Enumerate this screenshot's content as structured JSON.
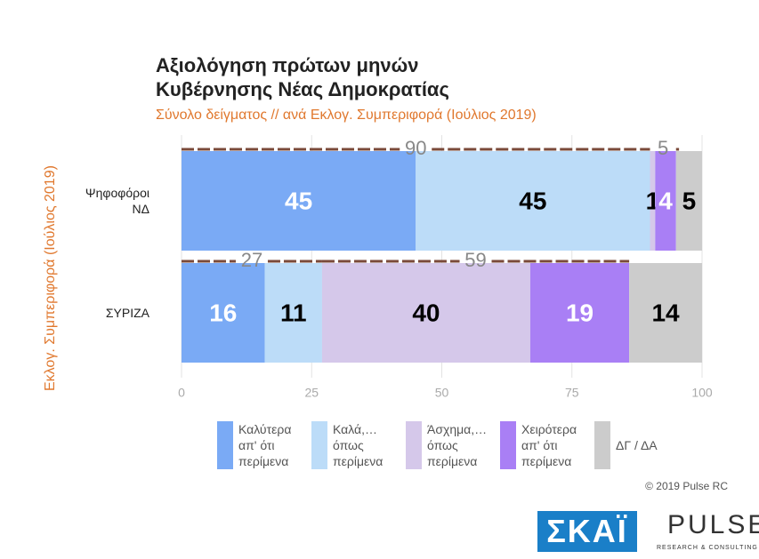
{
  "chart_data": {
    "type": "stacked_barh",
    "title": "Αξιολόγηση πρώτων μηνών Κυβέρνησης Νέας Δημοκρατίας",
    "subtitle": "Σύνολο δείγματος // ανά Εκλογ. Συμπεριφορά (Ιούλιος 2019)",
    "y_label": "Εκλογ. Συμπεριφορά (Ιούλιος 2019)",
    "categories": [
      "Ψηφοφόροι ΝΔ",
      "ΣΥΡΙΖΑ"
    ],
    "series": [
      {
        "name": "Καλύτερα απ' ότι περίμενα",
        "color": "#7aaaf5",
        "label_color": "#ffffff",
        "values": [
          45,
          16
        ]
      },
      {
        "name": "Καλά,… όπως περίμενα",
        "color": "#bcdcf8",
        "label_color": "#000000",
        "values": [
          45,
          11
        ]
      },
      {
        "name": "Άσχημα,… όπως περίμενα",
        "color": "#d5c8ea",
        "label_color": "#000000",
        "values": [
          1,
          40
        ]
      },
      {
        "name": "Χειρότερα απ' ότι περίμενα",
        "color": "#a97ff5",
        "label_color": "#ffffff",
        "values": [
          4,
          19
        ]
      },
      {
        "name": "ΔΓ / ΔΑ",
        "color": "#cccccc",
        "label_color": "#000000",
        "values": [
          5,
          14
        ]
      }
    ],
    "positive_totals": [
      90,
      27
    ],
    "negative_totals": [
      5,
      59
    ],
    "xlim": [
      0,
      100
    ],
    "xticks": [
      0,
      25,
      50,
      75,
      100
    ],
    "grid": true,
    "copyright": "© 2019 Pulse RC",
    "logos": {
      "skai": "ΣΚΑΪ",
      "pulse": "PULSE",
      "pulse_sub": "RESEARCH & CONSULTING"
    }
  }
}
